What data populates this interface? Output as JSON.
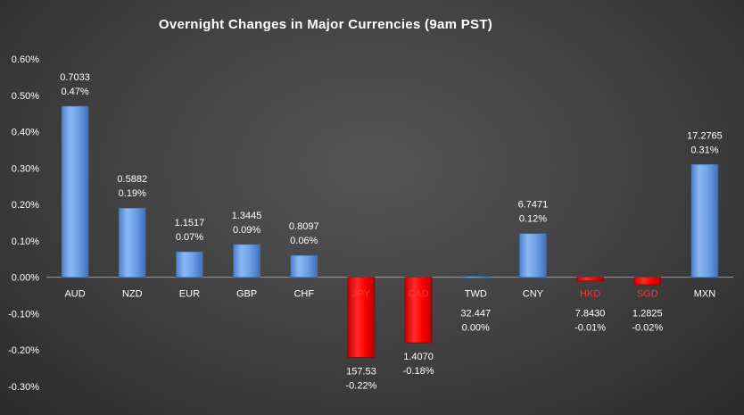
{
  "chart_data": {
    "type": "bar",
    "title": "Overnight Changes in Major Currencies (9am PST)",
    "xlabel": "",
    "ylabel": "",
    "ylim": [
      -0.003,
      0.006
    ],
    "yticks": [
      0.006,
      0.005,
      0.004,
      0.003,
      0.002,
      0.001,
      0.0,
      -0.001,
      -0.002,
      -0.003
    ],
    "ytick_labels": [
      "0.60%",
      "0.50%",
      "0.40%",
      "0.30%",
      "0.20%",
      "0.10%",
      "0.00%",
      "-0.10%",
      "-0.20%",
      "-0.30%"
    ],
    "grid": false,
    "legend": "none",
    "colors": {
      "positive": "#6fa3e8",
      "negative": "#ff0000",
      "negative_label": "#ff3333"
    },
    "categories": [
      "AUD",
      "NZD",
      "EUR",
      "GBP",
      "CHF",
      "JPY",
      "CAD",
      "TWD",
      "CNY",
      "HKD",
      "SGD",
      "MXN"
    ],
    "values": [
      0.0047,
      0.0019,
      0.0007,
      0.0009,
      0.0006,
      -0.0022,
      -0.0018,
      0.0,
      0.0012,
      -0.0001,
      -0.0002,
      0.0031
    ],
    "rates": [
      "0.7033",
      "0.5882",
      "1.1517",
      "1.3445",
      "0.8097",
      "157.53",
      "1.4070",
      "32.447",
      "6.7471",
      "7.8430",
      "1.2825",
      "17.2765"
    ],
    "pct_labels": [
      "0.47%",
      "0.19%",
      "0.07%",
      "0.09%",
      "0.06%",
      "-0.22%",
      "-0.18%",
      "0.00%",
      "0.12%",
      "-0.01%",
      "-0.02%",
      "0.31%"
    ]
  }
}
